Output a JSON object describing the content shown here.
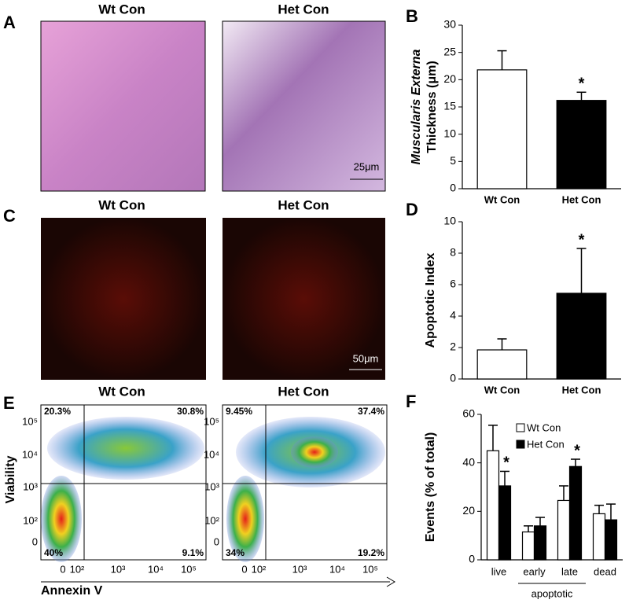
{
  "panel_letters": [
    "A",
    "B",
    "C",
    "D",
    "E",
    "F"
  ],
  "histology": {
    "left_title": "Wt Con",
    "right_title": "Het Con",
    "scale_bar": "25μm"
  },
  "fluorescence": {
    "left_title": "Wt Con",
    "right_title": "Het Con",
    "scale_bar": "50μm"
  },
  "flow": {
    "left_title": "Wt Con",
    "right_title": "Het Con",
    "left_quadrants": [
      "20.3%",
      "30.8%",
      "40%",
      "9.1%"
    ],
    "right_quadrants": [
      "9.45%",
      "37.4%",
      "34%",
      "19.2%"
    ],
    "y_ticks": [
      "10⁵",
      "10⁴",
      "10³",
      "10²",
      "0"
    ],
    "x_ticks": [
      "0",
      "10²",
      "10³",
      "10⁴",
      "10⁵"
    ],
    "x_label": "Annexin V",
    "y_label": "Viability"
  },
  "chart_data": [
    {
      "type": "bar",
      "categories": [
        "Wt Con",
        "Het Con"
      ],
      "values": [
        21.8,
        16.2
      ],
      "errors": [
        3.5,
        1.5
      ],
      "colors": [
        "#ffffff",
        "#000000"
      ],
      "significance": [
        null,
        "*"
      ],
      "y_label": [
        "Muscularis Externa",
        "Thickness (μm)"
      ],
      "ylim": [
        0,
        30
      ],
      "yticks": [
        0,
        5,
        10,
        15,
        20,
        25,
        30
      ]
    },
    {
      "type": "bar",
      "categories": [
        "Wt Con",
        "Het Con"
      ],
      "values": [
        1.85,
        5.45
      ],
      "errors": [
        0.7,
        2.85
      ],
      "colors": [
        "#ffffff",
        "#000000"
      ],
      "significance": [
        null,
        "*"
      ],
      "y_label": [
        "Apoptotic Index"
      ],
      "ylim": [
        0,
        10
      ],
      "yticks": [
        0,
        2,
        4,
        6,
        8,
        10
      ]
    },
    {
      "type": "grouped_bar",
      "categories": [
        "live",
        "early",
        "late",
        "dead"
      ],
      "group_label": "apoptotic",
      "series": [
        {
          "name": "Wt Con",
          "color": "#ffffff",
          "values": [
            45,
            11.5,
            24.5,
            19
          ],
          "errors": [
            10.5,
            2.5,
            6,
            3.5
          ],
          "significance": [
            null,
            null,
            null,
            null
          ]
        },
        {
          "name": "Het Con",
          "color": "#000000",
          "values": [
            30.5,
            14,
            38.5,
            16.5
          ],
          "errors": [
            6,
            3.5,
            3,
            6.5
          ],
          "significance": [
            "*",
            null,
            "*",
            null
          ]
        }
      ],
      "y_label": [
        "Events (% of total)"
      ],
      "ylim": [
        0,
        60
      ],
      "yticks": [
        0,
        20,
        40,
        60
      ]
    }
  ]
}
